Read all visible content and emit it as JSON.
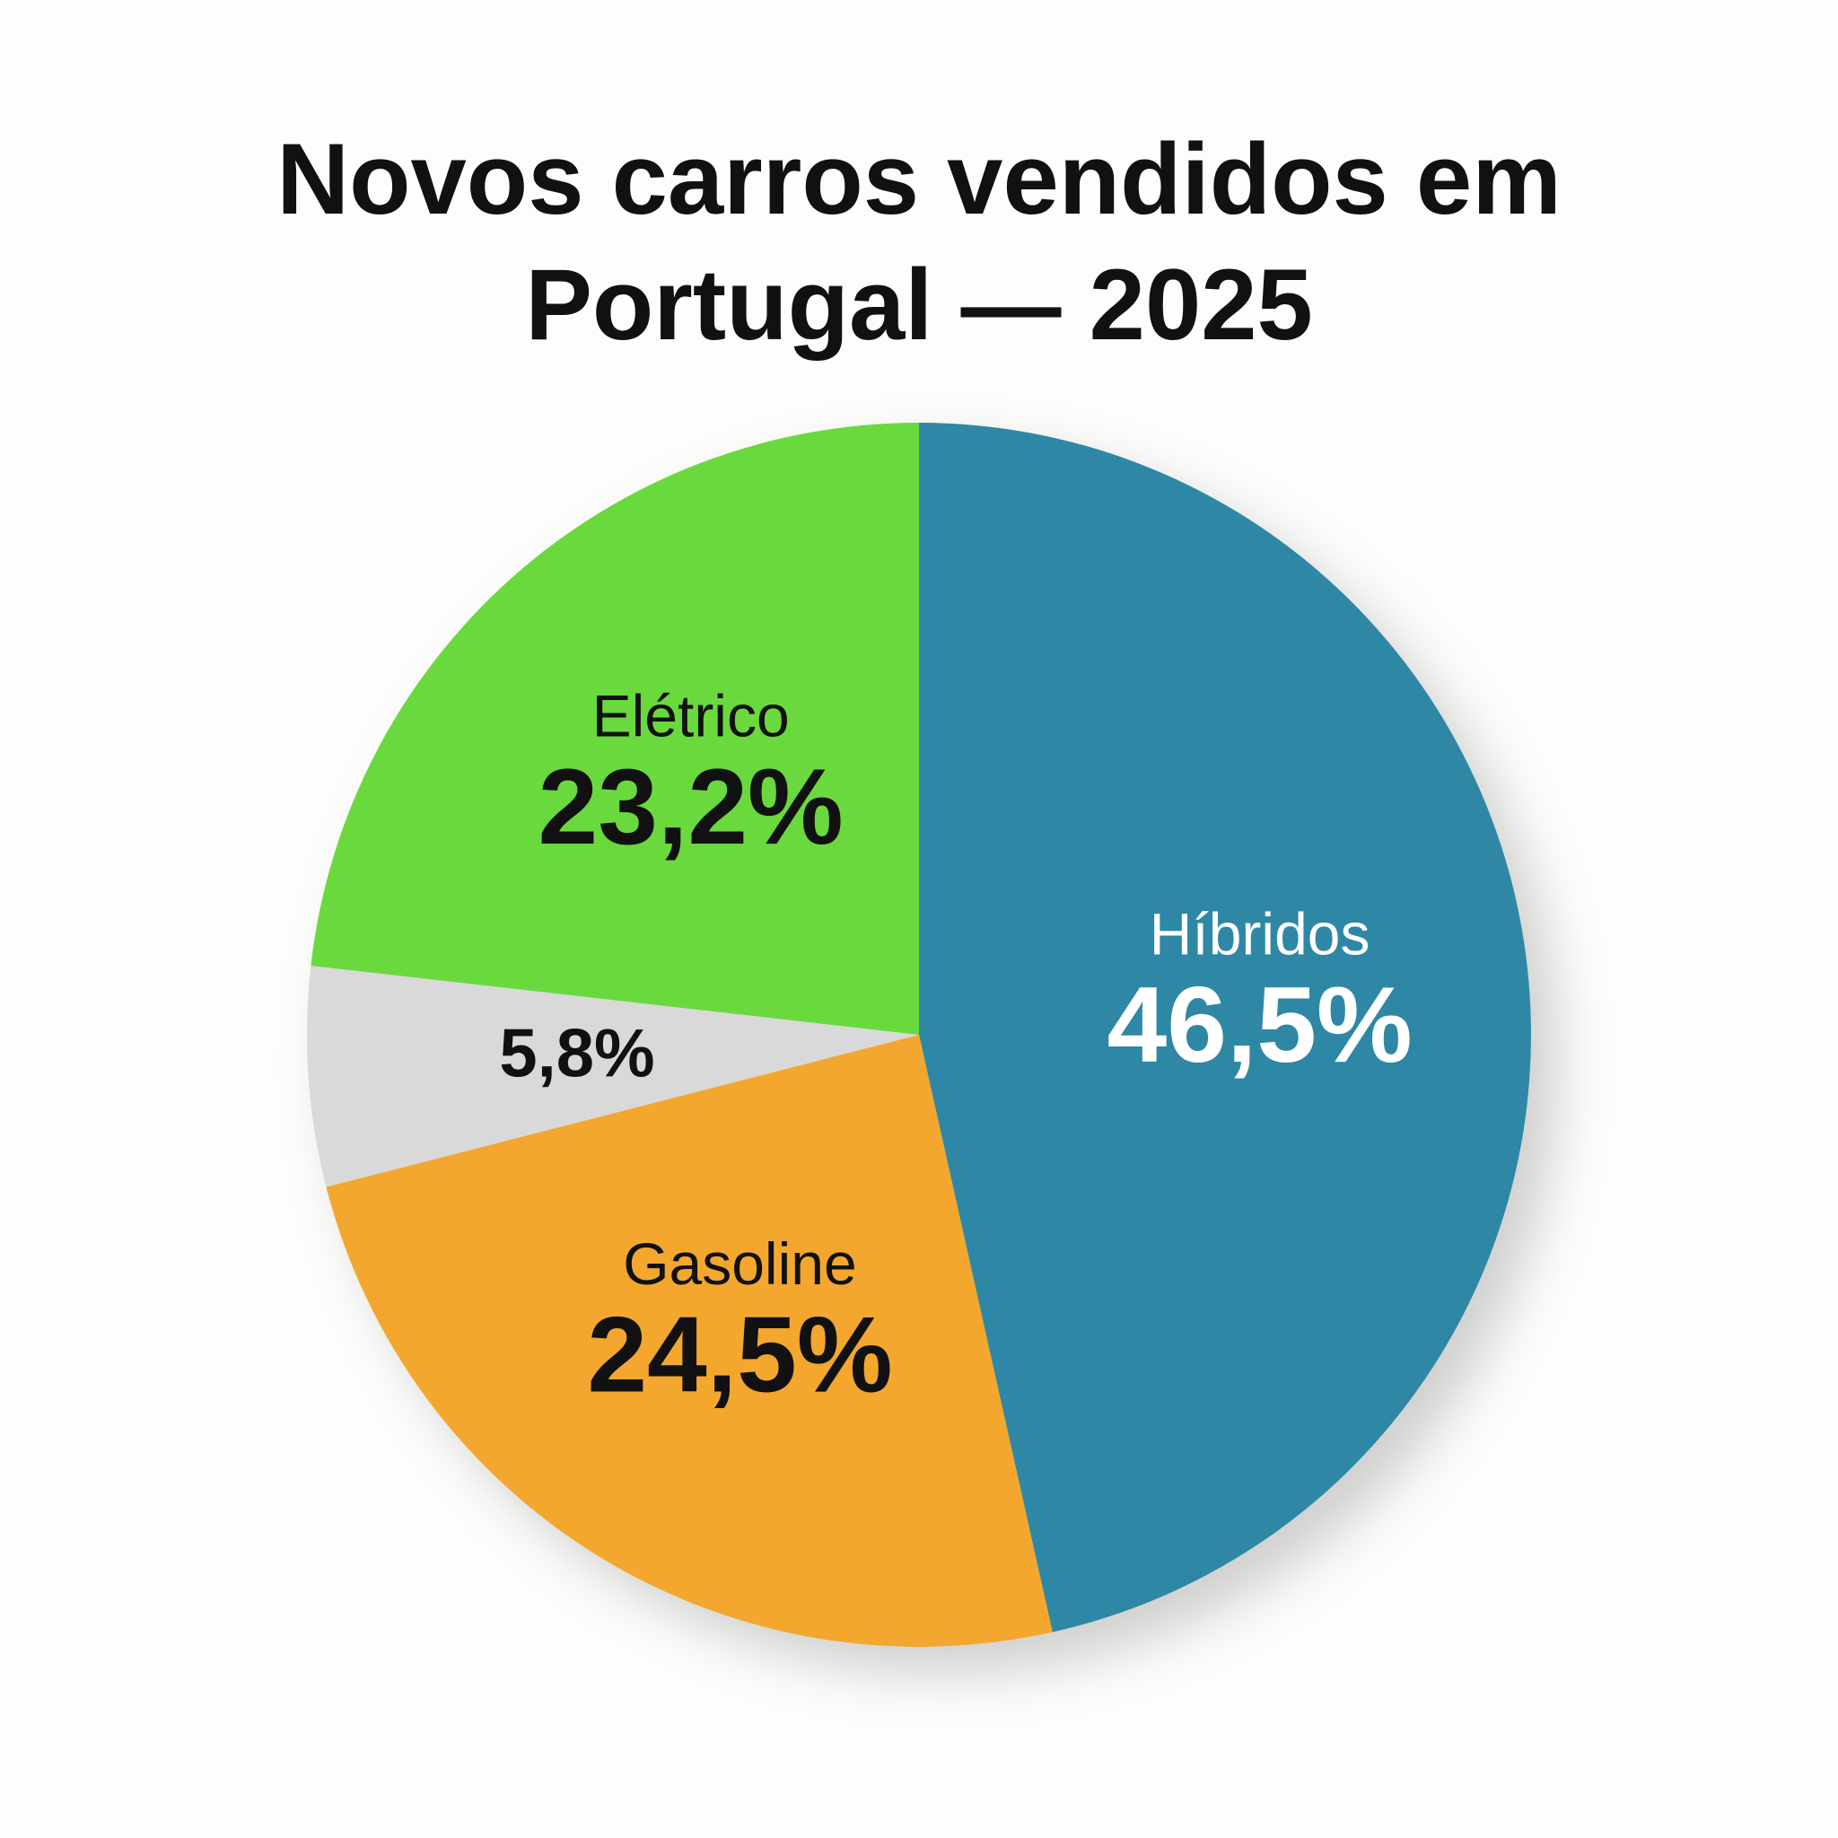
{
  "chart_data": {
    "type": "pie",
    "title": "Novos carros vendidos em Portugal — 2025",
    "categories": [
      "Híbridos",
      "Gasoline",
      null,
      "Elétrico"
    ],
    "values": [
      46.5,
      24.5,
      5.8,
      23.2
    ],
    "value_labels": [
      "46,5%",
      "24,5%",
      "5,8%",
      "23,2%"
    ],
    "colors": [
      "#2e88a5",
      "#f4a72f",
      "#d9d9d9",
      "#6ad93d"
    ]
  }
}
